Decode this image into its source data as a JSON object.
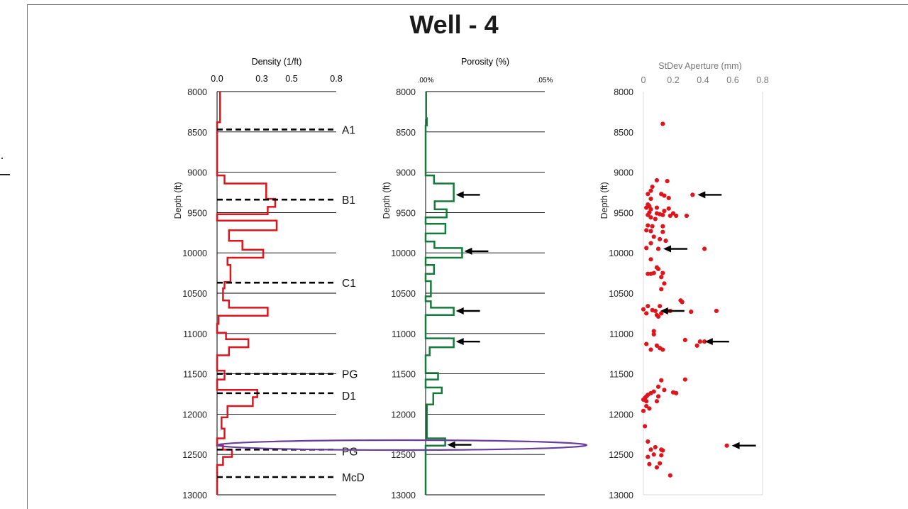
{
  "figure": {
    "title": "Well - 4"
  },
  "chart_data": [
    {
      "type": "line",
      "panel": "density",
      "title": "Density (1/ft)",
      "xlabel": "Density (1/ft)",
      "ylabel": "Depth (ft)",
      "xlim": [
        0,
        0.8
      ],
      "ylim": [
        8000,
        13000
      ],
      "x_ticks": [
        0.0,
        0.3,
        0.5,
        0.8
      ],
      "x_tick_labels": [
        "0.0",
        "0.3",
        "0.5",
        "0.8"
      ],
      "y_ticks": [
        8000,
        8500,
        9000,
        9500,
        10000,
        10500,
        11000,
        11500,
        12000,
        12500,
        13000
      ],
      "y_tick_labels": [
        "8000",
        "8500",
        "9000",
        "9500",
        "10000",
        "10500",
        "11000",
        "11500",
        "12000",
        "12500",
        "13000"
      ],
      "gridlines_horizontal": true,
      "color": "#e0141c",
      "step_profile": [
        [
          0.02,
          8000
        ],
        [
          0.02,
          8380
        ],
        [
          0.0,
          8380
        ],
        [
          0.0,
          9040
        ],
        [
          0.05,
          9040
        ],
        [
          0.05,
          9140
        ],
        [
          0.33,
          9140
        ],
        [
          0.33,
          9330
        ],
        [
          0.39,
          9330
        ],
        [
          0.39,
          9430
        ],
        [
          0.34,
          9430
        ],
        [
          0.34,
          9520
        ],
        [
          0.0,
          9520
        ],
        [
          0.0,
          9600
        ],
        [
          0.4,
          9600
        ],
        [
          0.4,
          9720
        ],
        [
          0.08,
          9720
        ],
        [
          0.08,
          9850
        ],
        [
          0.17,
          9850
        ],
        [
          0.17,
          9960
        ],
        [
          0.31,
          9960
        ],
        [
          0.31,
          10060
        ],
        [
          0.07,
          10060
        ],
        [
          0.07,
          10150
        ],
        [
          0.09,
          10150
        ],
        [
          0.09,
          10360
        ],
        [
          0.05,
          10360
        ],
        [
          0.05,
          10440
        ],
        [
          0.04,
          10440
        ],
        [
          0.04,
          10590
        ],
        [
          0.08,
          10590
        ],
        [
          0.08,
          10680
        ],
        [
          0.34,
          10680
        ],
        [
          0.34,
          10780
        ],
        [
          0.01,
          10780
        ],
        [
          0.01,
          10880
        ],
        [
          0.0,
          10880
        ],
        [
          0.0,
          10990
        ],
        [
          0.06,
          10990
        ],
        [
          0.06,
          11070
        ],
        [
          0.21,
          11070
        ],
        [
          0.21,
          11170
        ],
        [
          0.08,
          11170
        ],
        [
          0.08,
          11270
        ],
        [
          0.0,
          11270
        ],
        [
          0.0,
          11460
        ],
        [
          0.05,
          11460
        ],
        [
          0.05,
          11570
        ],
        [
          0.0,
          11570
        ],
        [
          0.0,
          11700
        ],
        [
          0.27,
          11700
        ],
        [
          0.27,
          11790
        ],
        [
          0.24,
          11790
        ],
        [
          0.24,
          11900
        ],
        [
          0.07,
          11900
        ],
        [
          0.07,
          12040
        ],
        [
          0.03,
          12040
        ],
        [
          0.03,
          12180
        ],
        [
          0.05,
          12180
        ],
        [
          0.05,
          12300
        ],
        [
          0.0,
          12300
        ],
        [
          0.0,
          12390
        ],
        [
          0.04,
          12390
        ],
        [
          0.04,
          12440
        ],
        [
          0.1,
          12440
        ],
        [
          0.1,
          12530
        ],
        [
          0.04,
          12530
        ],
        [
          0.04,
          12630
        ],
        [
          0.0,
          12630
        ],
        [
          0.0,
          13000
        ]
      ],
      "formation_tops": [
        {
          "label": "A1",
          "depth": 8470
        },
        {
          "label": "B1",
          "depth": 9340
        },
        {
          "label": "C1",
          "depth": 10370
        },
        {
          "label": "PG",
          "depth": 11500
        },
        {
          "label": "D1",
          "depth": 11740
        },
        {
          "label": "PG",
          "depth": 12440
        },
        {
          "label": "McD",
          "depth": 12780
        }
      ]
    },
    {
      "type": "line",
      "panel": "porosity",
      "title": "Porosity (%)",
      "xlabel": "Porosity (%)",
      "ylabel": "Depth (ft)",
      "xlim": [
        0,
        0.05
      ],
      "ylim": [
        8000,
        13000
      ],
      "x_ticks": [
        0,
        0.05
      ],
      "x_tick_labels": [
        ".00%",
        ".05%"
      ],
      "y_ticks": [
        8000,
        8500,
        9000,
        9500,
        10000,
        10500,
        11000,
        11500,
        12000,
        12500,
        13000
      ],
      "y_tick_labels": [
        "8000",
        "8500",
        "9000",
        "9500",
        "10000",
        "10500",
        "11000",
        "11500",
        "12000",
        "12500",
        "13000"
      ],
      "gridlines_horizontal": true,
      "color": "#157a3c",
      "step_profile": [
        [
          0.0002,
          8000
        ],
        [
          0.0002,
          8330
        ],
        [
          0.0005,
          8330
        ],
        [
          0.0005,
          8420
        ],
        [
          0.0,
          8420
        ],
        [
          0.0,
          9040
        ],
        [
          0.0035,
          9040
        ],
        [
          0.0035,
          9140
        ],
        [
          0.0118,
          9140
        ],
        [
          0.0118,
          9360
        ],
        [
          0.0038,
          9360
        ],
        [
          0.0038,
          9460
        ],
        [
          0.0088,
          9460
        ],
        [
          0.0088,
          9560
        ],
        [
          0.0,
          9560
        ],
        [
          0.0,
          9640
        ],
        [
          0.0083,
          9640
        ],
        [
          0.0083,
          9760
        ],
        [
          0.0,
          9760
        ],
        [
          0.0,
          9860
        ],
        [
          0.0037,
          9860
        ],
        [
          0.0037,
          9940
        ],
        [
          0.0153,
          9940
        ],
        [
          0.0153,
          10060
        ],
        [
          0.0,
          10060
        ],
        [
          0.0,
          10150
        ],
        [
          0.0035,
          10150
        ],
        [
          0.0035,
          10260
        ],
        [
          0.0,
          10260
        ],
        [
          0.0,
          10350
        ],
        [
          0.0022,
          10350
        ],
        [
          0.0022,
          10540
        ],
        [
          0.0,
          10540
        ],
        [
          0.0,
          10600
        ],
        [
          0.0022,
          10600
        ],
        [
          0.0022,
          10680
        ],
        [
          0.0118,
          10680
        ],
        [
          0.0118,
          10770
        ],
        [
          0.0,
          10770
        ],
        [
          0.0,
          10860
        ],
        [
          0.0,
          10950
        ],
        [
          0.0,
          11060
        ],
        [
          0.0118,
          11060
        ],
        [
          0.0118,
          11170
        ],
        [
          0.0017,
          11170
        ],
        [
          0.0017,
          11270
        ],
        [
          0.0,
          11270
        ],
        [
          0.0,
          11490
        ],
        [
          0.0052,
          11490
        ],
        [
          0.0052,
          11570
        ],
        [
          0.0,
          11570
        ],
        [
          0.0,
          11670
        ],
        [
          0.0068,
          11670
        ],
        [
          0.0068,
          11740
        ],
        [
          0.0032,
          11740
        ],
        [
          0.0032,
          11880
        ],
        [
          0.0005,
          11880
        ],
        [
          0.0005,
          12300
        ],
        [
          0.0082,
          12300
        ],
        [
          0.0082,
          12390
        ],
        [
          0.0,
          12390
        ],
        [
          0.0,
          13000
        ]
      ],
      "arrows_at_depth": [
        9280,
        9980,
        10720,
        11100,
        12380
      ]
    },
    {
      "type": "scatter",
      "panel": "aperture",
      "title": "StDev Aperture (mm)",
      "xlabel": "StDev Aperture (mm)",
      "ylabel": "Depth (ft)",
      "xlim": [
        0,
        0.8
      ],
      "ylim": [
        8000,
        13000
      ],
      "x_ticks": [
        0,
        0.2,
        0.4,
        0.6,
        0.8
      ],
      "x_tick_labels": [
        "0",
        "0.2",
        "0.4",
        "0.6",
        "0.8"
      ],
      "y_ticks": [
        8000,
        8500,
        9000,
        9500,
        10000,
        10500,
        11000,
        11500,
        12000,
        12500,
        13000
      ],
      "y_tick_labels": [
        "8000",
        "8500",
        "9000",
        "9500",
        "10000",
        "10500",
        "11000",
        "11500",
        "12000",
        "12500",
        "13000"
      ],
      "gridlines_horizontal": false,
      "color": "#e0141c",
      "points": [
        [
          0.13,
          8400
        ],
        [
          0.09,
          9100
        ],
        [
          0.16,
          9110
        ],
        [
          0.06,
          9180
        ],
        [
          0.05,
          9230
        ],
        [
          0.03,
          9270
        ],
        [
          0.12,
          9270
        ],
        [
          0.14,
          9290
        ],
        [
          0.33,
          9280
        ],
        [
          0.05,
          9330
        ],
        [
          0.17,
          9320
        ],
        [
          0.03,
          9400
        ],
        [
          0.04,
          9420
        ],
        [
          0.02,
          9440
        ],
        [
          0.09,
          9440
        ],
        [
          0.05,
          9460
        ],
        [
          0.17,
          9450
        ],
        [
          0.14,
          9480
        ],
        [
          0.04,
          9500
        ],
        [
          0.09,
          9510
        ],
        [
          0.11,
          9520
        ],
        [
          0.2,
          9510
        ],
        [
          0.03,
          9530
        ],
        [
          0.13,
          9530
        ],
        [
          0.18,
          9540
        ],
        [
          0.22,
          9540
        ],
        [
          0.29,
          9540
        ],
        [
          0.05,
          9560
        ],
        [
          0.08,
          9580
        ],
        [
          0.03,
          9660
        ],
        [
          0.06,
          9670
        ],
        [
          0.13,
          9670
        ],
        [
          0.02,
          9720
        ],
        [
          0.05,
          9730
        ],
        [
          0.13,
          9740
        ],
        [
          0.07,
          9800
        ],
        [
          0.11,
          9830
        ],
        [
          0.15,
          9850
        ],
        [
          0.05,
          9880
        ],
        [
          0.02,
          9940
        ],
        [
          0.1,
          9950
        ],
        [
          0.41,
          9950
        ],
        [
          0.05,
          10080
        ],
        [
          0.09,
          10180
        ],
        [
          0.03,
          10260
        ],
        [
          0.05,
          10260
        ],
        [
          0.07,
          10250
        ],
        [
          0.13,
          10250
        ],
        [
          0.1,
          10200
        ],
        [
          0.12,
          10300
        ],
        [
          0.14,
          10380
        ],
        [
          0.12,
          10450
        ],
        [
          0.25,
          10590
        ],
        [
          0.26,
          10610
        ],
        [
          0.03,
          10660
        ],
        [
          0.11,
          10660
        ],
        [
          0.0,
          10700
        ],
        [
          0.06,
          10710
        ],
        [
          0.08,
          10720
        ],
        [
          0.16,
          10720
        ],
        [
          0.18,
          10720
        ],
        [
          0.32,
          10730
        ],
        [
          0.49,
          10720
        ],
        [
          0.02,
          10750
        ],
        [
          0.12,
          10750
        ],
        [
          0.09,
          10770
        ],
        [
          0.1,
          10790
        ],
        [
          0.07,
          10970
        ],
        [
          0.07,
          11010
        ],
        [
          0.28,
          11080
        ],
        [
          0.38,
          11100
        ],
        [
          0.41,
          11100
        ],
        [
          0.36,
          11150
        ],
        [
          0.02,
          11130
        ],
        [
          0.09,
          11150
        ],
        [
          0.11,
          11180
        ],
        [
          0.05,
          11200
        ],
        [
          0.13,
          11200
        ],
        [
          0.12,
          11580
        ],
        [
          0.28,
          11570
        ],
        [
          0.1,
          11660
        ],
        [
          0.14,
          11700
        ],
        [
          0.07,
          11720
        ],
        [
          0.05,
          11740
        ],
        [
          0.2,
          11730
        ],
        [
          0.22,
          11740
        ],
        [
          0.03,
          11760
        ],
        [
          0.02,
          11780
        ],
        [
          0.1,
          11780
        ],
        [
          0.01,
          11800
        ],
        [
          0.0,
          11820
        ],
        [
          0.02,
          11840
        ],
        [
          0.09,
          11840
        ],
        [
          0.02,
          11900
        ],
        [
          0.04,
          11930
        ],
        [
          0.0,
          11960
        ],
        [
          0.01,
          12150
        ],
        [
          0.03,
          12340
        ],
        [
          0.56,
          12390
        ],
        [
          0.05,
          12440
        ],
        [
          0.08,
          12410
        ],
        [
          0.12,
          12440
        ],
        [
          0.13,
          12450
        ],
        [
          0.07,
          12500
        ],
        [
          0.12,
          12510
        ],
        [
          0.03,
          12530
        ],
        [
          0.04,
          12620
        ],
        [
          0.11,
          12610
        ],
        [
          0.09,
          12660
        ],
        [
          0.18,
          12760
        ]
      ],
      "arrows_at_depth": [
        9280,
        9950,
        10720,
        11100,
        12390
      ]
    }
  ]
}
